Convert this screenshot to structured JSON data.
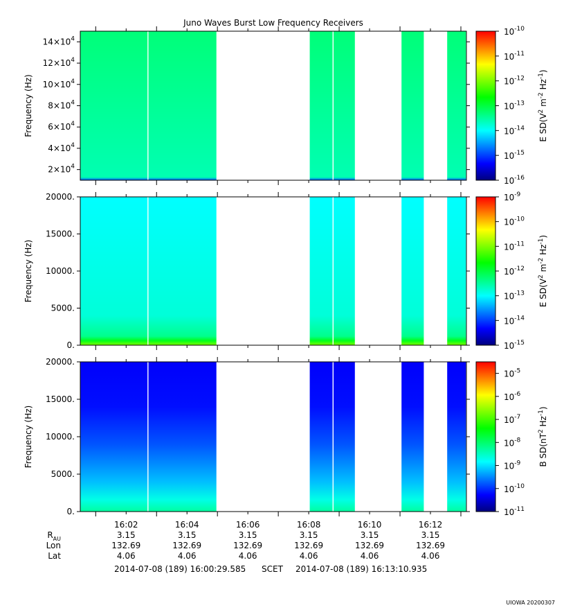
{
  "title": "Juno Waves Burst Low Frequency Receivers",
  "time_axis": {
    "ticks": [
      "16:02",
      "16:04",
      "16:06",
      "16:08",
      "16:10",
      "16:12"
    ],
    "start": "2014-07-08 (189) 16:00:29.585",
    "frame": "SCET",
    "end": "2014-07-08 (189) 16:13:10.935"
  },
  "ephemeris": {
    "rows": [
      {
        "label": "R",
        "label_sub": "AU",
        "values": [
          "3.15",
          "3.15",
          "3.15",
          "3.15",
          "3.15",
          "3.15"
        ]
      },
      {
        "label": "Lon",
        "label_sub": "",
        "values": [
          "132.69",
          "132.69",
          "132.69",
          "132.69",
          "132.69",
          "132.69"
        ]
      },
      {
        "label": "Lat",
        "label_sub": "",
        "values": [
          "4.06",
          "4.06",
          "4.06",
          "4.06",
          "4.06",
          "4.06"
        ]
      }
    ]
  },
  "footer_stamp": "UIOWA 20200307",
  "colors": {
    "data_gaps": "#ffffff",
    "colormap": [
      "#00007f",
      "#0000ff",
      "#007fff",
      "#00ffff",
      "#00ff7f",
      "#00ff00",
      "#7fff00",
      "#ffff00",
      "#ff7f00",
      "#ff0000"
    ]
  },
  "chart_data": [
    {
      "type": "heatmap",
      "panel": "upper",
      "ylabel": "Frequency (Hz)",
      "y_ticks": [
        {
          "value": 20000,
          "mant": "2×10",
          "exp": "4"
        },
        {
          "value": 40000,
          "mant": "4×10",
          "exp": "4"
        },
        {
          "value": 60000,
          "mant": "6×10",
          "exp": "4"
        },
        {
          "value": 80000,
          "mant": "8×10",
          "exp": "4"
        },
        {
          "value": 100000,
          "mant": "10×10",
          "exp": "4"
        },
        {
          "value": 120000,
          "mant": "12×10",
          "exp": "4"
        },
        {
          "value": 140000,
          "mant": "14×10",
          "exp": "4"
        }
      ],
      "ylim": [
        10000,
        150000
      ],
      "colorbar_label_parts": [
        "E SD(V",
        "2",
        " m",
        "-2",
        " Hz",
        "-1",
        ")"
      ],
      "colorbar_ticks": [
        {
          "mant": "10",
          "exp": "-16"
        },
        {
          "mant": "10",
          "exp": "-15"
        },
        {
          "mant": "10",
          "exp": "-14"
        },
        {
          "mant": "10",
          "exp": "-13"
        },
        {
          "mant": "10",
          "exp": "-12"
        },
        {
          "mant": "10",
          "exp": "-11"
        },
        {
          "mant": "10",
          "exp": "-10"
        }
      ],
      "clim_log10": [
        -16,
        -10
      ],
      "typical_log10": -13.3
    },
    {
      "type": "heatmap",
      "panel": "middle",
      "ylabel": "Frequency (Hz)",
      "y_ticks": [
        {
          "value": 0,
          "mant": "0.",
          "exp": ""
        },
        {
          "value": 5000,
          "mant": "5000.",
          "exp": ""
        },
        {
          "value": 10000,
          "mant": "10000.",
          "exp": ""
        },
        {
          "value": 15000,
          "mant": "15000.",
          "exp": ""
        },
        {
          "value": 20000,
          "mant": "20000.",
          "exp": ""
        }
      ],
      "ylim": [
        0,
        20000
      ],
      "colorbar_label_parts": [
        "E SD(V",
        "2",
        " m",
        "-2",
        " Hz",
        "-1",
        ")"
      ],
      "colorbar_ticks": [
        {
          "mant": "10",
          "exp": "-15"
        },
        {
          "mant": "10",
          "exp": "-14"
        },
        {
          "mant": "10",
          "exp": "-13"
        },
        {
          "mant": "10",
          "exp": "-12"
        },
        {
          "mant": "10",
          "exp": "-11"
        },
        {
          "mant": "10",
          "exp": "-10"
        },
        {
          "mant": "10",
          "exp": "-9"
        }
      ],
      "clim_log10": [
        -15,
        -9
      ],
      "typical_log10": -13.0
    },
    {
      "type": "heatmap",
      "panel": "lower",
      "ylabel": "Frequency (Hz)",
      "y_ticks": [
        {
          "value": 0,
          "mant": "0.",
          "exp": ""
        },
        {
          "value": 5000,
          "mant": "5000.",
          "exp": ""
        },
        {
          "value": 10000,
          "mant": "10000.",
          "exp": ""
        },
        {
          "value": 15000,
          "mant": "15000.",
          "exp": ""
        },
        {
          "value": 20000,
          "mant": "20000.",
          "exp": ""
        }
      ],
      "ylim": [
        0,
        20000
      ],
      "colorbar_label_parts": [
        "B SD(nT",
        "2",
        " Hz",
        "-1",
        ")"
      ],
      "colorbar_ticks": [
        {
          "mant": "10",
          "exp": "-11"
        },
        {
          "mant": "10",
          "exp": "-10"
        },
        {
          "mant": "10",
          "exp": "-9"
        },
        {
          "mant": "10",
          "exp": "-8"
        },
        {
          "mant": "10",
          "exp": "-7"
        },
        {
          "mant": "10",
          "exp": "-6"
        },
        {
          "mant": "10",
          "exp": "-5"
        }
      ],
      "clim_log10": [
        -11,
        -4.5
      ],
      "typical_log10": -10.2
    }
  ],
  "data_intervals": [
    [
      "16:00:29",
      "16:02:42"
    ],
    [
      "16:02:44",
      "16:04:58"
    ],
    [
      "16:08:02",
      "16:08:47"
    ],
    [
      "16:08:49",
      "16:09:31"
    ],
    [
      "16:11:03",
      "16:11:47"
    ],
    [
      "16:12:33",
      "16:13:10"
    ]
  ]
}
